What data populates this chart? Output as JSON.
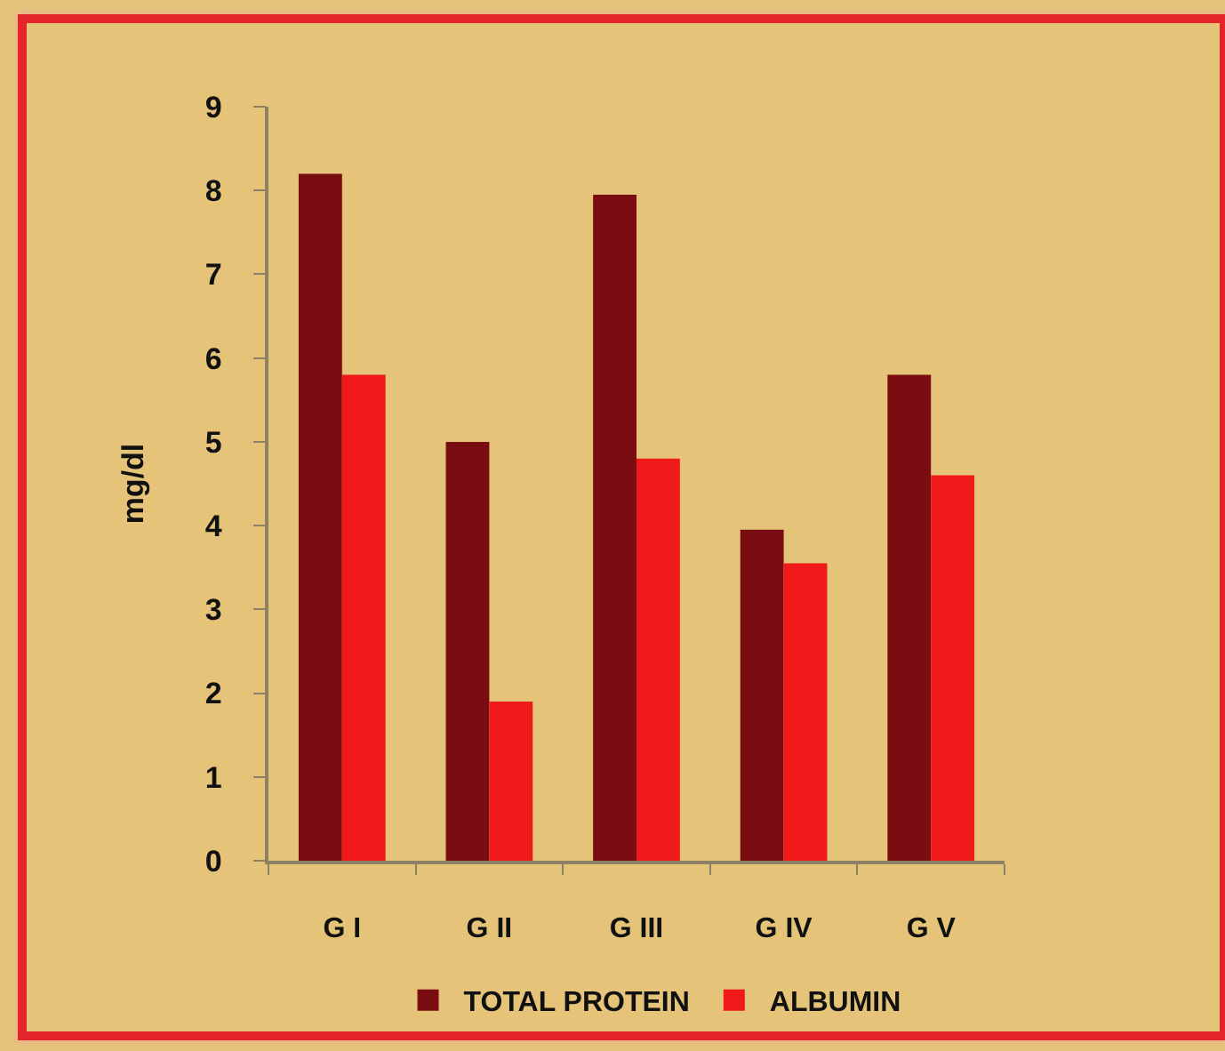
{
  "chart_data": {
    "type": "bar",
    "categories": [
      "G I",
      "G II",
      "G III",
      "G IV",
      "G V"
    ],
    "series": [
      {
        "name": "TOTAL PROTEIN",
        "color": "#7a0d12",
        "values": [
          8.2,
          5.0,
          7.95,
          3.95,
          5.8
        ]
      },
      {
        "name": "ALBUMIN",
        "color": "#f01a1a",
        "values": [
          5.8,
          1.9,
          4.8,
          3.55,
          4.6
        ]
      }
    ],
    "ylabel": "mg/dl",
    "ylim": [
      0,
      9
    ],
    "yticks": [
      0,
      1,
      2,
      3,
      4,
      5,
      6,
      7,
      8,
      9
    ],
    "legend": "bottom"
  }
}
